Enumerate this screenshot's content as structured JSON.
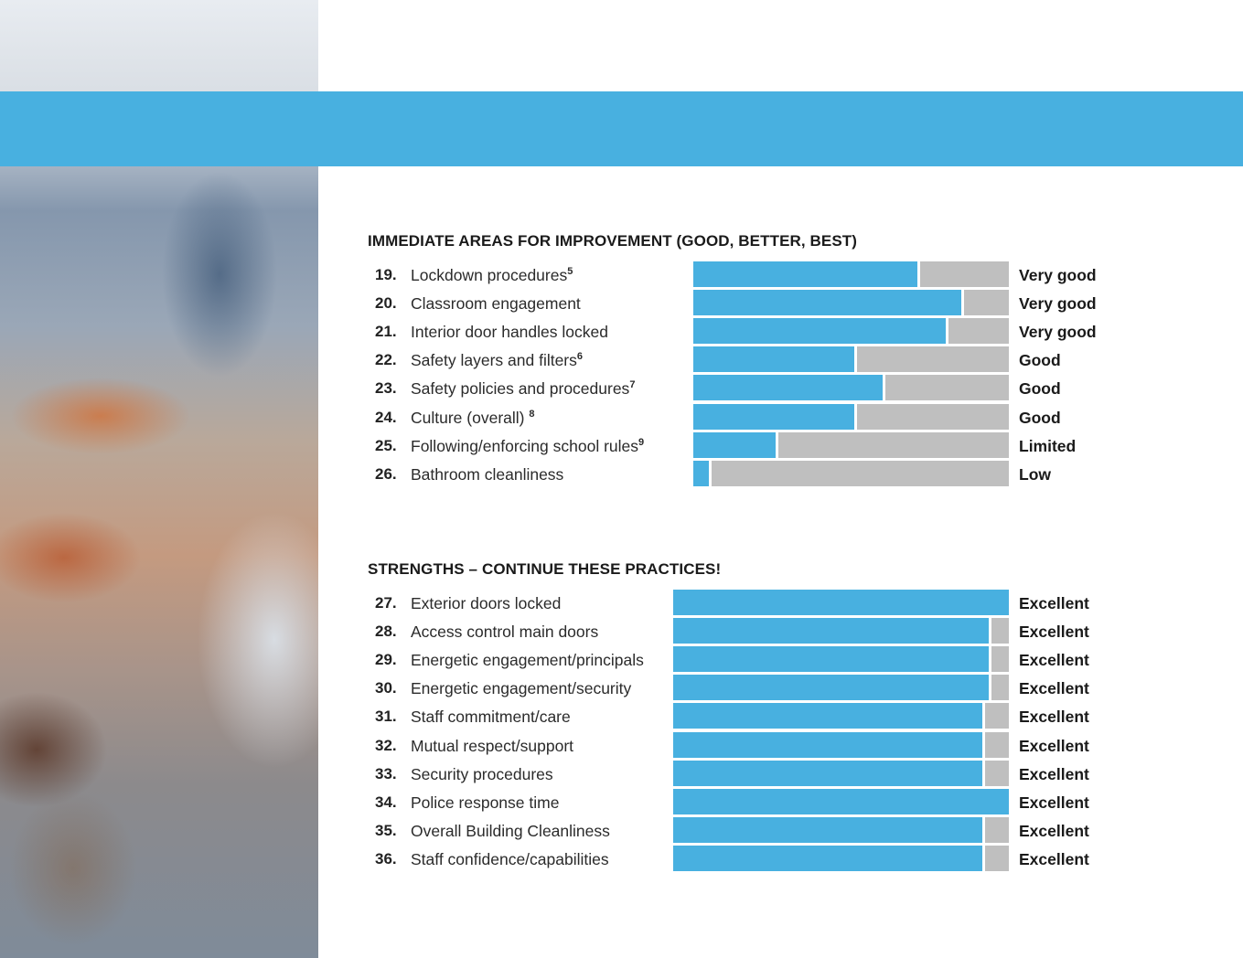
{
  "chart_data": [
    {
      "type": "bar",
      "orientation": "horizontal",
      "stacked": true,
      "title": "IMMEDIATE AREAS FOR IMPROVEMENT (GOOD, BETTER, BEST)",
      "xlim": [
        0,
        100
      ],
      "colors": {
        "value": "#48b0e0",
        "remainder": "#bfbfbf"
      },
      "rows": [
        {
          "num": "19.",
          "label": "Lockdown procedures",
          "sup": "5",
          "value": 71,
          "rating": "Very good"
        },
        {
          "num": "20.",
          "label": "Classroom engagement",
          "sup": "",
          "value": 85,
          "rating": "Very good"
        },
        {
          "num": "21.",
          "label": "Interior door handles locked",
          "sup": "",
          "value": 80,
          "rating": "Very good"
        },
        {
          "num": "22.",
          "label": "Safety layers and filters",
          "sup": "6",
          "value": 51,
          "rating": "Good"
        },
        {
          "num": "23.",
          "label": "Safety policies and procedures",
          "sup": "7",
          "value": 60,
          "rating": "Good"
        },
        {
          "num": "24.",
          "label": "Culture (overall) ",
          "sup": "8",
          "value": 51,
          "rating": "Good"
        },
        {
          "num": "25.",
          "label": "Following/enforcing school rules",
          "sup": "9",
          "value": 26,
          "rating": "Limited"
        },
        {
          "num": "26.",
          "label": "Bathroom cleanliness",
          "sup": "",
          "value": 5,
          "rating": "Low"
        }
      ]
    },
    {
      "type": "bar",
      "orientation": "horizontal",
      "stacked": true,
      "title": "STRENGTHS – CONTINUE THESE PRACTICES!",
      "xlim": [
        0,
        100
      ],
      "colors": {
        "value": "#48b0e0",
        "remainder": "#bfbfbf"
      },
      "rows": [
        {
          "num": "27.",
          "label": "Exterior doors locked",
          "sup": "",
          "value": 100,
          "rating": "Excellent"
        },
        {
          "num": "28.",
          "label": "Access control main doors",
          "sup": "",
          "value": 94,
          "rating": "Excellent"
        },
        {
          "num": "29.",
          "label": "Energetic engagement/principals",
          "sup": "",
          "value": 94,
          "rating": "Excellent"
        },
        {
          "num": "30.",
          "label": "Energetic engagement/security",
          "sup": "",
          "value": 94,
          "rating": "Excellent"
        },
        {
          "num": "31.",
          "label": "Staff commitment/care",
          "sup": "",
          "value": 92,
          "rating": "Excellent"
        },
        {
          "num": "32.",
          "label": "Mutual respect/support",
          "sup": "",
          "value": 92,
          "rating": "Excellent"
        },
        {
          "num": "33.",
          "label": "Security procedures",
          "sup": "",
          "value": 92,
          "rating": "Excellent"
        },
        {
          "num": "34.",
          "label": "Police response time",
          "sup": "",
          "value": 100,
          "rating": "Excellent"
        },
        {
          "num": "35.",
          "label": "Overall Building Cleanliness",
          "sup": "",
          "value": 92,
          "rating": "Excellent"
        },
        {
          "num": "36.",
          "label": "Staff confidence/capabilities",
          "sup": "",
          "value": 92,
          "rating": "Excellent"
        }
      ]
    }
  ]
}
